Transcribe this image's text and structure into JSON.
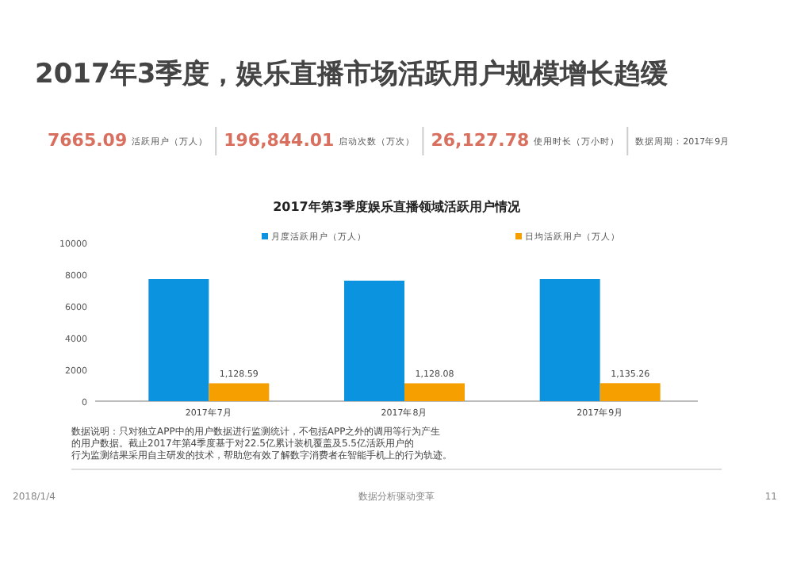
{
  "chart_data": {
    "type": "bar",
    "title": "2017年3季度，娱乐直播市场活跃用户规模增长趋缓",
    "subtitle": "2017年第3季度娱乐直播领域活跃用户情况",
    "categories": [
      "2017年7月",
      "2017年8月",
      "2017年9月"
    ],
    "series": [
      {
        "name": "月度活跃用户（万人）",
        "color": "#0b93e0",
        "values": [
          7700,
          7600,
          7700
        ]
      },
      {
        "name": "日均活跃用户（万人）",
        "color": "#f5a000",
        "values": [
          1128.59,
          1128.08,
          1135.26
        ],
        "value_labels": [
          "1,128.59",
          "1,128.08",
          "1,135.26"
        ]
      }
    ],
    "ylim": [
      0,
      10000
    ],
    "yticks": [
      0,
      2000,
      4000,
      6000,
      8000,
      10000
    ],
    "legend": "top",
    "annotations": [
      "7665.09",
      "活跃用户（万人）",
      "196,844.01",
      "启动次数（万次）",
      "26,127.78",
      "使用时长（万小时）",
      "数据周期：2017年9月",
      "数据说明：只对独立APP中的用户数据进行监测统计，不包括APP之外的调用等行为产生的用户数据。截止2017年第4季度基于对22.5亿累计装机覆盖及5.5亿活跃用户的行为监测结果采用自主研发的技术，帮助您有效了解数字消费者在智能手机上的行为轨迹。",
      "2018/1/4",
      "数据分析驱动变革",
      "11"
    ]
  }
}
